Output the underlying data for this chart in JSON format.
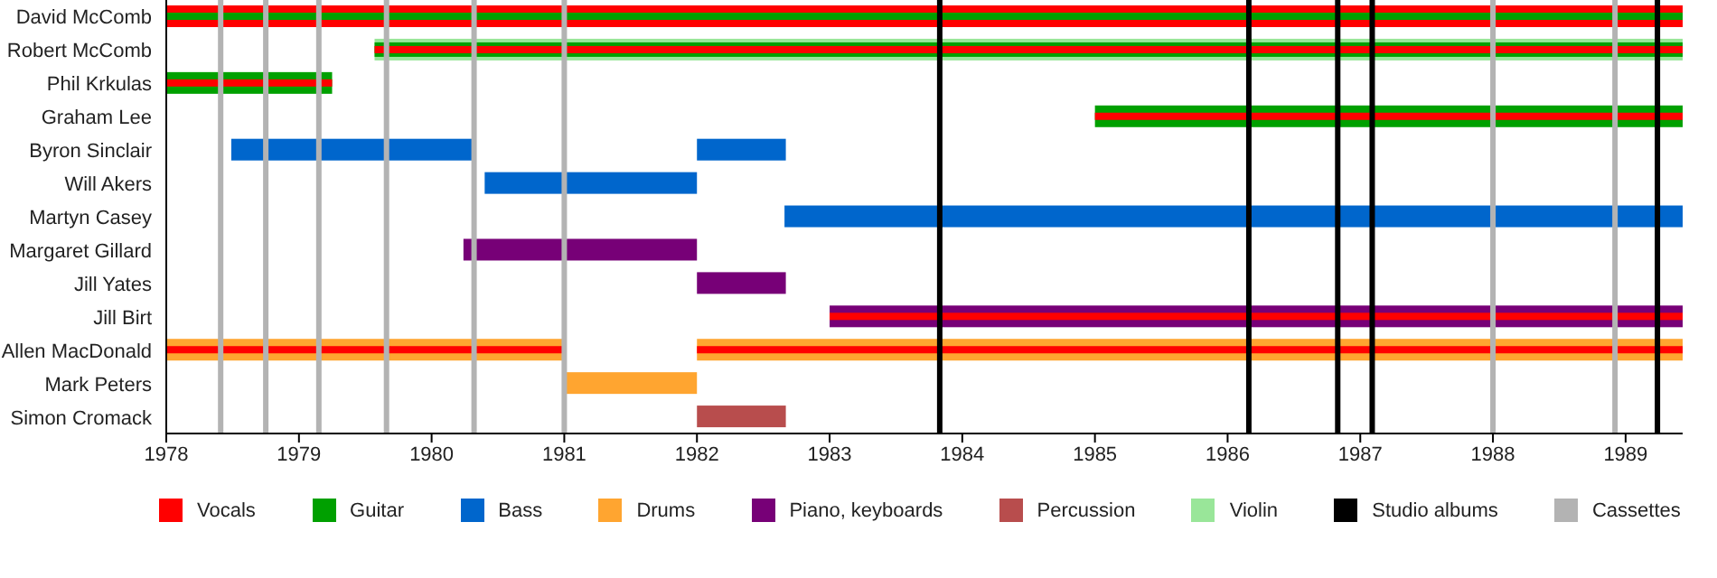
{
  "chart_data": {
    "type": "bar",
    "orientation": "horizontal",
    "legend": "bottom",
    "categories": [
      "David McComb",
      "Robert McComb",
      "Phil Krkulas",
      "Graham Lee",
      "Byron Sinclair",
      "Will Akers",
      "Martyn Casey",
      "Margaret Gillard",
      "Jill Yates",
      "Jill Birt",
      "Allen MacDonald",
      "Mark Peters",
      "Simon Cromack"
    ],
    "xlim": [
      1978,
      1989.43
    ],
    "xticks": [
      1978,
      1979,
      1980,
      1981,
      1982,
      1983,
      1984,
      1985,
      1986,
      1987,
      1988,
      1989
    ],
    "series": [
      {
        "name": "Vocals",
        "color": "#ff0000",
        "base": [
          1978,
          null,
          null,
          null,
          null,
          null,
          null,
          null,
          null,
          null,
          null,
          null,
          null
        ],
        "values": [
          11.43,
          null,
          null,
          null,
          null,
          null,
          null,
          null,
          null,
          null,
          null,
          null,
          null
        ]
      },
      {
        "name": "Guitar",
        "color": "#00a000",
        "base": [
          1978,
          null,
          1978,
          1985,
          null,
          null,
          null,
          null,
          null,
          null,
          null,
          null,
          null
        ],
        "values": [
          11.43,
          null,
          1.25,
          4.43,
          null,
          null,
          null,
          null,
          null,
          null,
          null,
          null,
          null
        ]
      },
      {
        "name": "Bass",
        "color": "#0066cc",
        "base": [
          null,
          null,
          null,
          null,
          1978.49,
          1980.4,
          1982.66,
          null,
          null,
          null,
          null,
          null,
          null
        ],
        "values": [
          null,
          null,
          null,
          null,
          1.84,
          1.6,
          6.77,
          null,
          null,
          null,
          null,
          null,
          null
        ]
      },
      {
        "name": "Drums",
        "color": "#ffa530",
        "base": [
          null,
          null,
          null,
          null,
          null,
          null,
          null,
          null,
          null,
          null,
          1978,
          1981,
          null
        ],
        "values": [
          null,
          null,
          null,
          null,
          null,
          null,
          null,
          null,
          null,
          null,
          3,
          1,
          null
        ]
      },
      {
        "name": "Piano, keyboards",
        "color": "#770077",
        "base": [
          null,
          null,
          null,
          null,
          null,
          null,
          null,
          1980.24,
          1982,
          1983,
          null,
          null,
          null
        ],
        "values": [
          null,
          null,
          null,
          null,
          null,
          null,
          null,
          1.76,
          0.67,
          6.43,
          null,
          null,
          null
        ]
      },
      {
        "name": "Percussion",
        "color": "#b84d4d",
        "base": [
          null,
          null,
          null,
          null,
          null,
          null,
          null,
          null,
          null,
          null,
          null,
          null,
          1982
        ],
        "values": [
          null,
          null,
          null,
          null,
          null,
          null,
          null,
          null,
          null,
          null,
          null,
          null,
          0.67
        ]
      },
      {
        "name": "Violin",
        "color": "#99e699",
        "base": [
          null,
          1979.57,
          null,
          null,
          null,
          null,
          null,
          null,
          null,
          null,
          null,
          null,
          null
        ],
        "values": [
          null,
          9.86,
          null,
          null,
          null,
          null,
          null,
          null,
          null,
          null,
          null,
          null,
          null
        ]
      },
      {
        "color": "#00a000",
        "base": [
          null,
          1979.57,
          null,
          null,
          null,
          null,
          null,
          null,
          null,
          null,
          null,
          null,
          null
        ],
        "values": [
          null,
          9.86,
          null,
          null,
          null,
          null,
          null,
          null,
          null,
          null,
          null,
          null,
          null
        ]
      },
      {
        "color": "#0066cc",
        "base": [
          null,
          null,
          null,
          null,
          1982,
          null,
          null,
          null,
          null,
          null,
          null,
          null,
          null
        ],
        "values": [
          null,
          null,
          null,
          null,
          0.67,
          null,
          null,
          null,
          null,
          null,
          null,
          null,
          null
        ]
      },
      {
        "color": "#ffa530",
        "base": [
          null,
          null,
          null,
          null,
          null,
          null,
          null,
          null,
          null,
          null,
          1982,
          null,
          null
        ],
        "values": [
          null,
          null,
          null,
          null,
          null,
          null,
          null,
          null,
          null,
          null,
          7.43,
          null,
          null
        ]
      },
      {
        "color": "#ff0000",
        "base": [
          null,
          1979.57,
          1978,
          1985,
          null,
          null,
          null,
          null,
          null,
          1983,
          1978,
          null,
          null
        ],
        "values": [
          null,
          9.86,
          1.25,
          4.43,
          null,
          null,
          null,
          null,
          null,
          6.43,
          3,
          null,
          null
        ]
      },
      {
        "color": "#ff0000",
        "base": [
          null,
          null,
          null,
          null,
          null,
          null,
          null,
          null,
          null,
          null,
          1982,
          null,
          null
        ],
        "values": [
          null,
          null,
          null,
          null,
          null,
          null,
          null,
          null,
          null,
          null,
          7.43,
          null,
          null
        ]
      }
    ],
    "ref_lines": [
      {
        "axis": "x",
        "value": 1983.83,
        "color": "#000000",
        "label": "Studio albums"
      },
      {
        "axis": "x",
        "value": 1986.16,
        "color": "#000000"
      },
      {
        "axis": "x",
        "value": 1986.83,
        "color": "#000000"
      },
      {
        "axis": "x",
        "value": 1987.09,
        "color": "#000000"
      },
      {
        "axis": "x",
        "value": 1989.24,
        "color": "#000000"
      },
      {
        "axis": "x",
        "value": 1978.41,
        "color": "#b3b3b3",
        "label": "Cassettes"
      },
      {
        "axis": "x",
        "value": 1978.75,
        "color": "#b3b3b3"
      },
      {
        "axis": "x",
        "value": 1979.15,
        "color": "#b3b3b3"
      },
      {
        "axis": "x",
        "value": 1979.66,
        "color": "#b3b3b3"
      },
      {
        "axis": "x",
        "value": 1980.32,
        "color": "#b3b3b3"
      },
      {
        "axis": "x",
        "value": 1981.0,
        "color": "#b3b3b3"
      },
      {
        "axis": "x",
        "value": 1988.0,
        "color": "#b3b3b3"
      },
      {
        "axis": "x",
        "value": 1988.92,
        "color": "#b3b3b3"
      }
    ]
  }
}
